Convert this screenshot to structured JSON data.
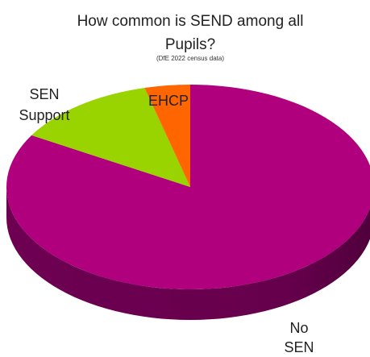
{
  "chart_data": {
    "type": "pie",
    "title_lines": [
      "How common is SEND among all",
      "Pupils?"
    ],
    "subtitle": "(DfE 2022 census data)",
    "categories": [
      "No SEN",
      "SEN Support",
      "EHCP"
    ],
    "label_lines": [
      [
        "No",
        "SEN"
      ],
      [
        "SEN",
        "Support"
      ],
      [
        "EHCP"
      ]
    ],
    "values": [
      83.5,
      12.6,
      4.0
    ],
    "colors": [
      "#b0007e",
      "#99d400",
      "#ff6600"
    ],
    "side_colors": [
      "#6e0052",
      "#5f8500",
      "#a84300"
    ],
    "three_d": true,
    "legend": "none"
  }
}
